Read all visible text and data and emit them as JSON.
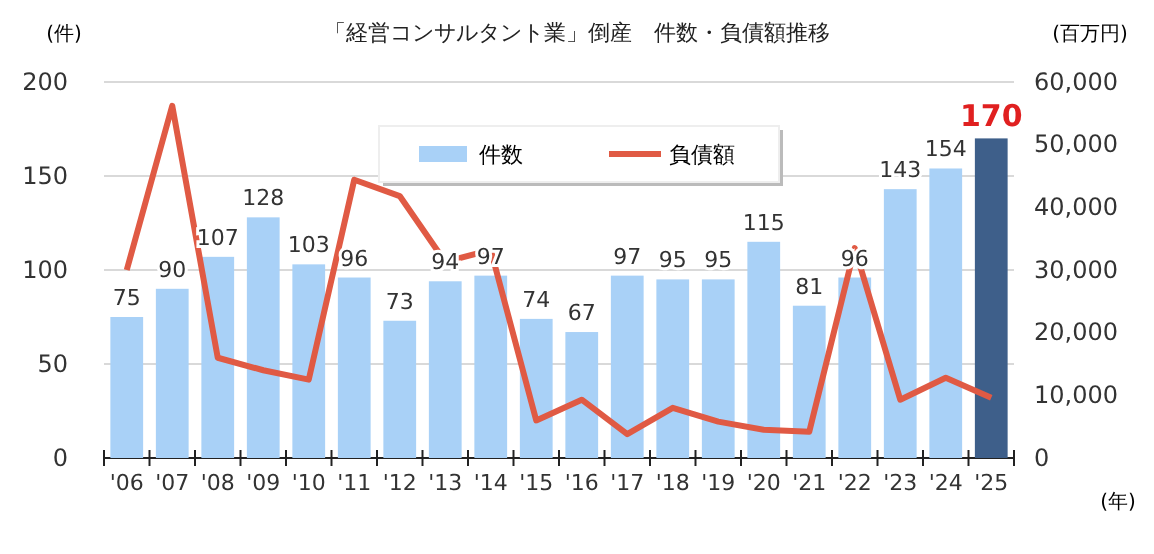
{
  "chart_data": {
    "type": "bar",
    "title": "「経営コンサルタント業」倒産　件数・負債額推移",
    "xlabel": "(年)",
    "ylabel": "(件)",
    "y2label": "(百万円)",
    "categories": [
      "'06",
      "'07",
      "'08",
      "'09",
      "'10",
      "'11",
      "'12",
      "'13",
      "'14",
      "'15",
      "'16",
      "'17",
      "'18",
      "'19",
      "'20",
      "'21",
      "'22",
      "'23",
      "'24",
      "'25"
    ],
    "series": [
      {
        "name": "件数",
        "color": "#a9d1f7",
        "value_labels": [
          "75",
          "90",
          "107",
          "128",
          "103",
          "96",
          "73",
          "94",
          "97",
          "74",
          "67",
          "97",
          "95",
          "95",
          "115",
          "81",
          "96",
          "143",
          "154",
          "170"
        ],
        "colors": [
          "#a9d1f7",
          "#a9d1f7",
          "#a9d1f7",
          "#a9d1f7",
          "#a9d1f7",
          "#a9d1f7",
          "#a9d1f7",
          "#a9d1f7",
          "#a9d1f7",
          "#a9d1f7",
          "#a9d1f7",
          "#a9d1f7",
          "#a9d1f7",
          "#a9d1f7",
          "#a9d1f7",
          "#a9d1f7",
          "#a9d1f7",
          "#a9d1f7",
          "#a9d1f7",
          "#3e5f8a"
        ],
        "values": [
          75,
          90,
          107,
          128,
          103,
          96,
          73,
          94,
          97,
          74,
          67,
          97,
          95,
          95,
          115,
          81,
          96,
          143,
          154,
          170
        ]
      },
      {
        "name": "負債額",
        "type": "line",
        "axis": "y2",
        "color": "#e05a44",
        "values": [
          30000,
          56200,
          16000,
          14000,
          12500,
          44400,
          41800,
          31300,
          33200,
          6000,
          9300,
          3800,
          8000,
          5800,
          4500,
          4200,
          33500,
          9300,
          12800,
          9600
        ]
      }
    ],
    "ylim": [
      0,
      200
    ],
    "yticks": [
      0,
      50,
      100,
      150,
      200
    ],
    "y2lim": [
      0,
      60000
    ],
    "y2ticks": [
      {
        "value": 0,
        "label": "0"
      },
      {
        "value": 10000,
        "label": "10,000"
      },
      {
        "value": 20000,
        "label": "20,000"
      },
      {
        "value": 30000,
        "label": "30,000"
      },
      {
        "value": 40000,
        "label": "40,000"
      },
      {
        "value": 50000,
        "label": "50,000"
      },
      {
        "value": 60000,
        "label": "60,000"
      }
    ],
    "grid": "y",
    "legend": "top",
    "marker": "none",
    "line_style": "solid"
  }
}
